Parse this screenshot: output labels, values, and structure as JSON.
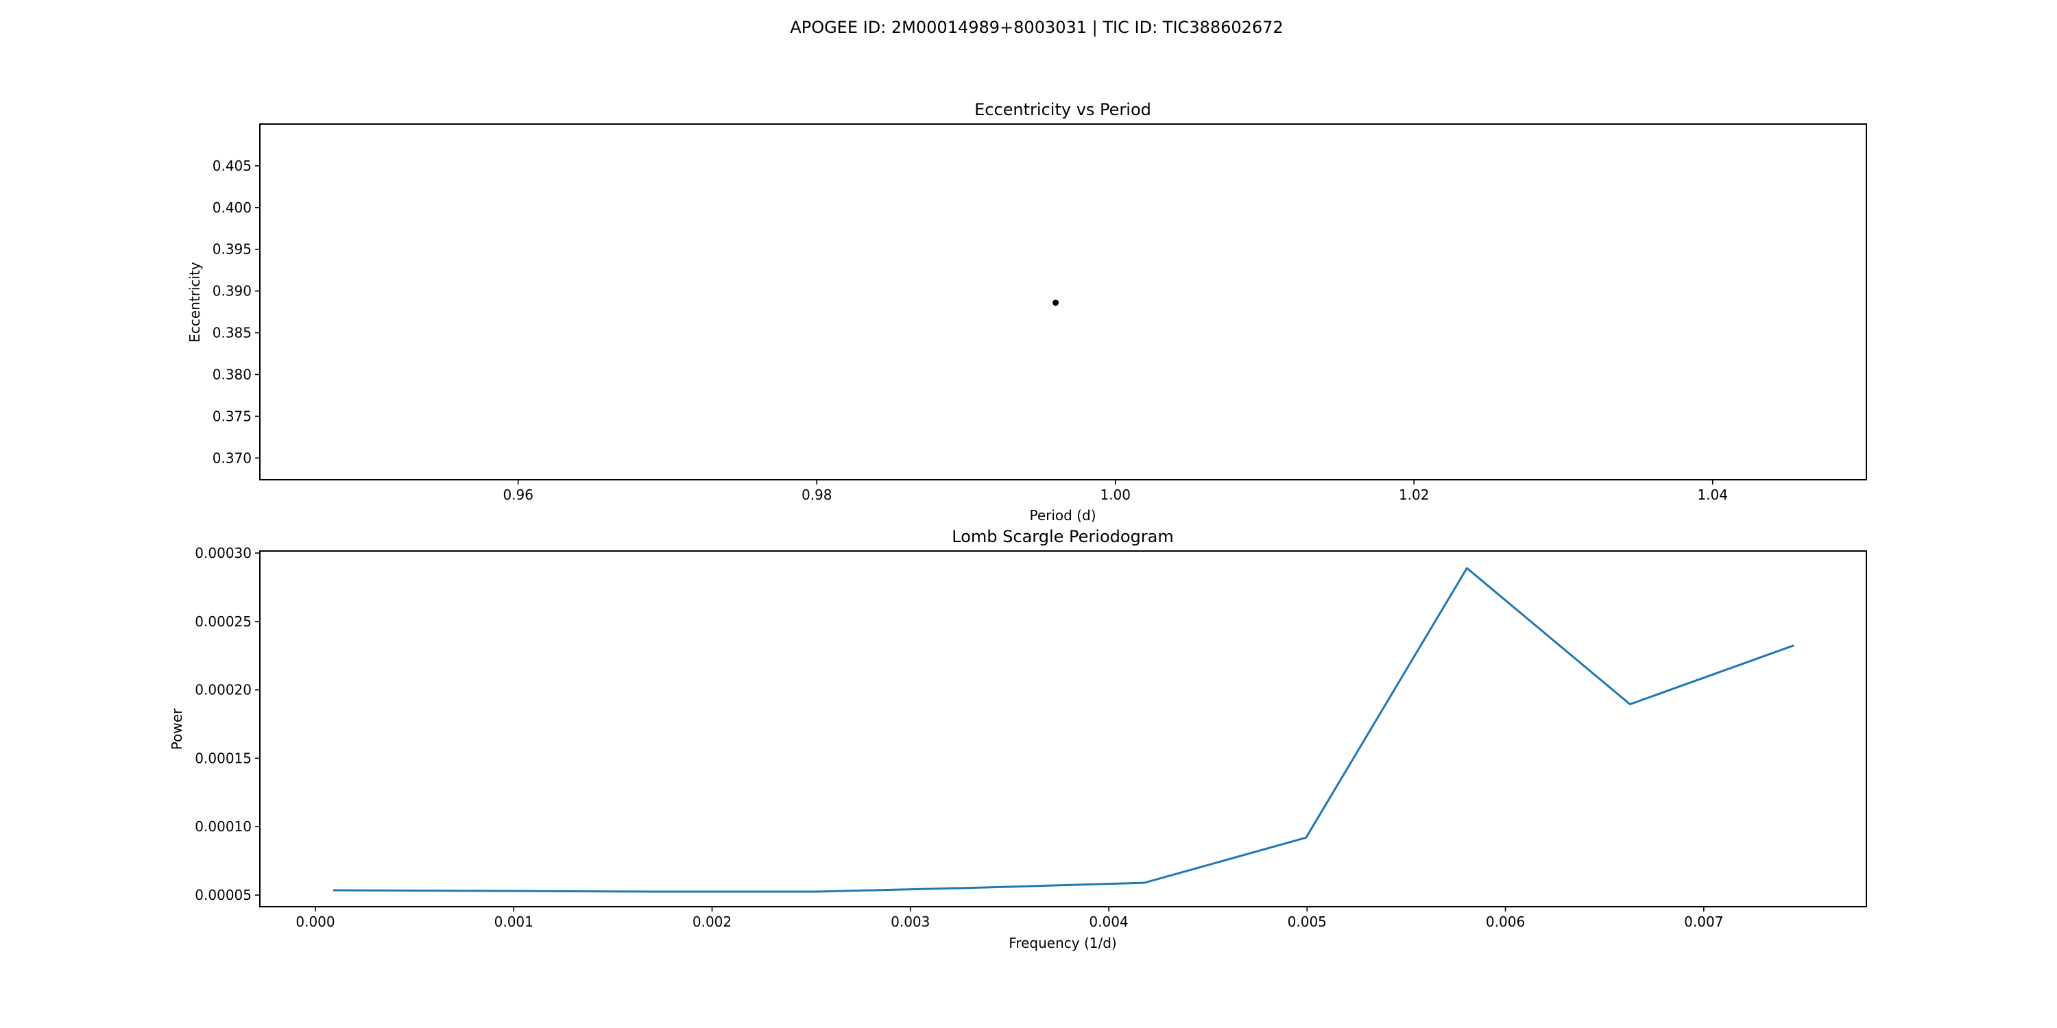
{
  "figure": {
    "suptitle": "APOGEE ID: 2M00014989+8003031 | TIC ID: TIC388602672"
  },
  "chart_data": [
    {
      "type": "scatter",
      "title": "Eccentricity vs Period",
      "xlabel": "Period (d)",
      "ylabel": "Eccentricity",
      "xlim": [
        0.9427,
        1.0503
      ],
      "ylim": [
        0.3674,
        0.41
      ],
      "xticks": [
        0.96,
        0.98,
        1.0,
        1.02,
        1.04
      ],
      "xtick_labels": [
        "0.96",
        "0.98",
        "1.00",
        "1.02",
        "1.04"
      ],
      "yticks": [
        0.37,
        0.375,
        0.38,
        0.385,
        0.39,
        0.395,
        0.4,
        0.405
      ],
      "ytick_labels": [
        "0.370",
        "0.375",
        "0.380",
        "0.385",
        "0.390",
        "0.395",
        "0.400",
        "0.405"
      ],
      "points": [
        {
          "x": 0.996,
          "y": 0.3886
        }
      ],
      "color": "#000000",
      "grid": false
    },
    {
      "type": "line",
      "title": "Lomb Scargle Periodogram",
      "xlabel": "Frequency (1/d)",
      "ylabel": "Power",
      "xlim": [
        -0.00028,
        0.00782
      ],
      "ylim": [
        4.15e-05,
        0.0003015
      ],
      "xticks": [
        0.0,
        0.001,
        0.002,
        0.003,
        0.004,
        0.005,
        0.006,
        0.007
      ],
      "xtick_labels": [
        "0.000",
        "0.001",
        "0.002",
        "0.003",
        "0.004",
        "0.005",
        "0.006",
        "0.007"
      ],
      "yticks": [
        5e-05,
        0.0001,
        0.00015,
        0.0002,
        0.00025,
        0.0003
      ],
      "ytick_labels": [
        "0.00005",
        "0.00010",
        "0.00015",
        "0.00020",
        "0.00025",
        "0.00030"
      ],
      "series": [
        {
          "x": [
            8.95e-05,
            0.000916,
            0.001717,
            0.00253,
            0.003357,
            0.00418,
            0.004995,
            0.005806,
            0.006628,
            0.007455
          ],
          "y": [
            5.35e-05,
            5.3e-05,
            5.25e-05,
            5.25e-05,
            5.55e-05,
            5.9e-05,
            9.2e-05,
            0.000289,
            0.0001895,
            0.0002325
          ]
        }
      ],
      "color": "#1f77b4",
      "grid": false
    }
  ]
}
